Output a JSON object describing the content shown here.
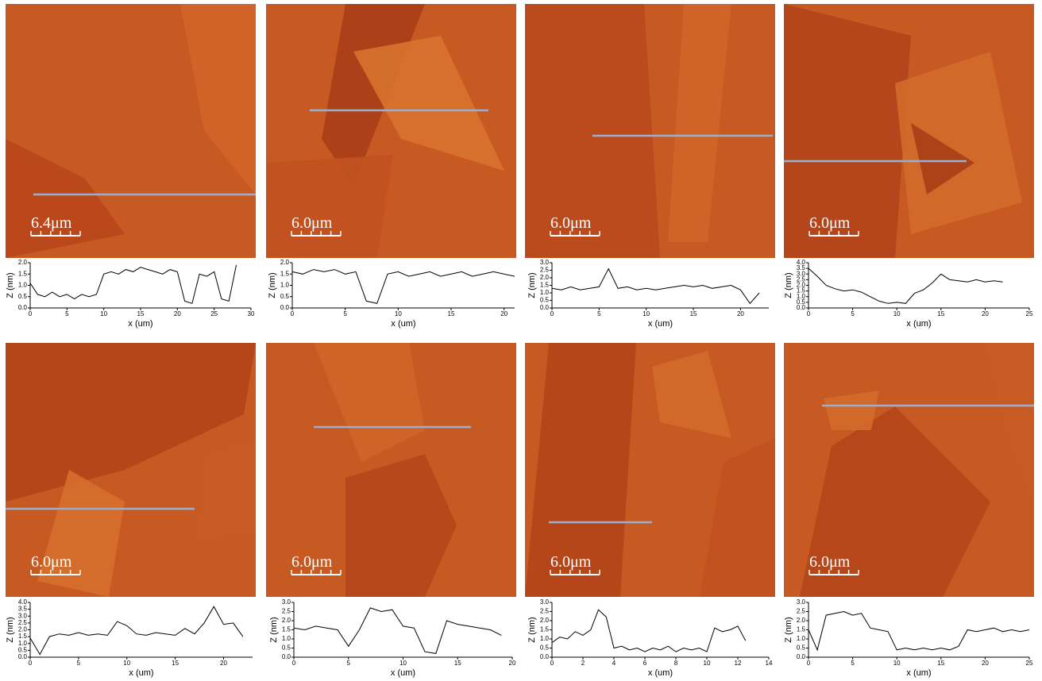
{
  "chart_data": [
    {
      "type": "line",
      "scale_bar": "6.4μm",
      "xlabel": "x (um)",
      "ylabel": "Z (nm)",
      "x": [
        0,
        1,
        2,
        3,
        4,
        5,
        6,
        7,
        8,
        9,
        10,
        11,
        12,
        13,
        14,
        15,
        16,
        17,
        18,
        19,
        20,
        21,
        22,
        23,
        24,
        25,
        26,
        27,
        28
      ],
      "values": [
        1.1,
        0.6,
        0.5,
        0.7,
        0.5,
        0.6,
        0.4,
        0.6,
        0.5,
        0.6,
        1.5,
        1.6,
        1.5,
        1.7,
        1.6,
        1.8,
        1.7,
        1.6,
        1.5,
        1.7,
        1.6,
        0.3,
        0.2,
        1.5,
        1.4,
        1.6,
        0.4,
        0.3,
        1.9
      ],
      "xlim": [
        0,
        30
      ],
      "xticks": [
        0,
        5,
        10,
        15,
        20,
        25,
        30
      ],
      "ylim": [
        0,
        2
      ],
      "yticks": [
        {
          "value": 0,
          "label": "0.0"
        },
        0.5,
        {
          "value": 1,
          "label": "1.0"
        },
        1.5,
        {
          "value": 2,
          "label": "2.0"
        }
      ],
      "color": "#000000"
    },
    {
      "type": "line",
      "scale_bar": "6.0μm",
      "xlabel": "x (um)",
      "ylabel": "Z (nm)",
      "x": [
        0,
        1,
        2,
        3,
        4,
        5,
        6,
        7,
        8,
        9,
        10,
        11,
        12,
        13,
        14,
        15,
        16,
        17,
        18,
        19,
        20,
        21
      ],
      "values": [
        1.6,
        1.5,
        1.7,
        1.6,
        1.7,
        1.5,
        1.6,
        0.3,
        0.2,
        1.5,
        1.6,
        1.4,
        1.5,
        1.6,
        1.4,
        1.5,
        1.6,
        1.4,
        1.5,
        1.6,
        1.5,
        1.4
      ],
      "xlim": [
        0,
        21
      ],
      "xticks": [
        0,
        5,
        10,
        15,
        20
      ],
      "ylim": [
        0,
        2
      ],
      "yticks": [
        {
          "value": 0,
          "label": "0.0"
        },
        0.5,
        {
          "value": 1,
          "label": "1.0"
        },
        1.5,
        {
          "value": 2,
          "label": "2.0"
        }
      ],
      "color": "#000000"
    },
    {
      "type": "line",
      "scale_bar": "6.0μm",
      "xlabel": "x (um)",
      "ylabel": "Z (nm)",
      "x": [
        0,
        1,
        2,
        3,
        4,
        5,
        6,
        7,
        8,
        9,
        10,
        11,
        12,
        13,
        14,
        15,
        16,
        17,
        18,
        19,
        20,
        21,
        22
      ],
      "values": [
        1.3,
        1.2,
        1.4,
        1.2,
        1.3,
        1.4,
        2.6,
        1.3,
        1.4,
        1.2,
        1.3,
        1.2,
        1.3,
        1.4,
        1.5,
        1.4,
        1.5,
        1.3,
        1.4,
        1.5,
        1.2,
        0.3,
        1.0
      ],
      "xlim": [
        0,
        23
      ],
      "xticks": [
        0,
        5,
        10,
        15,
        20
      ],
      "ylim": [
        0,
        3
      ],
      "yticks": [
        {
          "value": 0,
          "label": "0.0"
        },
        0.5,
        {
          "value": 1,
          "label": "1.0"
        },
        1.5,
        {
          "value": 2,
          "label": "2.0"
        },
        2.5,
        {
          "value": 3,
          "label": "3.0"
        }
      ],
      "color": "#000000"
    },
    {
      "type": "line",
      "scale_bar": "6.0μm",
      "xlabel": "x (um)",
      "ylabel": "Z (nm)",
      "x": [
        0,
        1,
        2,
        3,
        4,
        5,
        6,
        7,
        8,
        9,
        10,
        11,
        12,
        13,
        14,
        15,
        16,
        17,
        18,
        19,
        20,
        21,
        22
      ],
      "values": [
        3.5,
        2.8,
        2.0,
        1.7,
        1.5,
        1.6,
        1.4,
        1.0,
        0.6,
        0.4,
        0.5,
        0.4,
        1.3,
        1.6,
        2.2,
        3.0,
        2.5,
        2.4,
        2.3,
        2.5,
        2.3,
        2.4,
        2.3
      ],
      "xlim": [
        0,
        25
      ],
      "xticks": [
        0,
        5,
        10,
        15,
        20,
        25
      ],
      "ylim": [
        0,
        4
      ],
      "yticks": [
        {
          "value": 0,
          "label": "0.0"
        },
        0.5,
        {
          "value": 1,
          "label": "1.0"
        },
        1.5,
        {
          "value": 2,
          "label": "2.0"
        },
        2.5,
        {
          "value": 3,
          "label": "3.0"
        },
        3.5,
        {
          "value": 4,
          "label": "4.0"
        }
      ],
      "color": "#000000"
    },
    {
      "type": "line",
      "scale_bar": "6.0μm",
      "xlabel": "x (um)",
      "ylabel": "Z (nm)",
      "x": [
        0,
        1,
        2,
        3,
        4,
        5,
        6,
        7,
        8,
        9,
        10,
        11,
        12,
        13,
        14,
        15,
        16,
        17,
        18,
        19,
        20,
        21,
        22
      ],
      "values": [
        1.4,
        0.2,
        1.5,
        1.7,
        1.6,
        1.8,
        1.6,
        1.7,
        1.6,
        2.6,
        2.3,
        1.7,
        1.6,
        1.8,
        1.7,
        1.6,
        2.1,
        1.7,
        2.5,
        3.7,
        2.4,
        2.5,
        1.5
      ],
      "xlim": [
        0,
        23
      ],
      "xticks": [
        0,
        5,
        10,
        15,
        20
      ],
      "ylim": [
        0,
        4
      ],
      "yticks": [
        {
          "value": 0,
          "label": "0.0"
        },
        0.5,
        {
          "value": 1,
          "label": "1.0"
        },
        1.5,
        {
          "value": 2,
          "label": "2.0"
        },
        2.5,
        {
          "value": 3,
          "label": "3.0"
        },
        3.5,
        {
          "value": 4,
          "label": "4.0"
        }
      ],
      "color": "#000000"
    },
    {
      "type": "line",
      "scale_bar": "6.0μm",
      "xlabel": "x (um)",
      "ylabel": "Z (nm)",
      "x": [
        0,
        1,
        2,
        3,
        4,
        5,
        6,
        7,
        8,
        9,
        10,
        11,
        12,
        13,
        14,
        15,
        16,
        17,
        18,
        19
      ],
      "values": [
        1.6,
        1.5,
        1.7,
        1.6,
        1.5,
        0.6,
        1.5,
        2.7,
        2.5,
        2.6,
        1.7,
        1.6,
        0.3,
        0.2,
        2.0,
        1.8,
        1.7,
        1.6,
        1.5,
        1.2
      ],
      "xlim": [
        0,
        20
      ],
      "xticks": [
        0,
        5,
        10,
        15,
        20
      ],
      "ylim": [
        0,
        3
      ],
      "yticks": [
        {
          "value": 0,
          "label": "0.0"
        },
        0.5,
        {
          "value": 1,
          "label": "1.0"
        },
        1.5,
        {
          "value": 2,
          "label": "2.0"
        },
        2.5,
        {
          "value": 3,
          "label": "3.0"
        }
      ],
      "color": "#000000"
    },
    {
      "type": "line",
      "scale_bar": "6.0μm",
      "xlabel": "x (um)",
      "ylabel": "Z (nm)",
      "x": [
        0,
        0.5,
        1,
        1.5,
        2,
        2.5,
        3,
        3.5,
        4,
        4.5,
        5,
        5.5,
        6,
        6.5,
        7,
        7.5,
        8,
        8.5,
        9,
        9.5,
        10,
        10.5,
        11,
        11.5,
        12,
        12.5
      ],
      "values": [
        0.8,
        1.1,
        1.0,
        1.4,
        1.2,
        1.5,
        2.6,
        2.2,
        0.5,
        0.6,
        0.4,
        0.5,
        0.3,
        0.5,
        0.4,
        0.6,
        0.3,
        0.5,
        0.4,
        0.5,
        0.3,
        1.6,
        1.4,
        1.5,
        1.7,
        0.9
      ],
      "xlim": [
        0,
        14
      ],
      "xticks": [
        0,
        2,
        4,
        6,
        8,
        10,
        12,
        14
      ],
      "ylim": [
        0,
        3
      ],
      "yticks": [
        {
          "value": 0,
          "label": "0.0"
        },
        0.5,
        {
          "value": 1,
          "label": "1.0"
        },
        1.5,
        {
          "value": 2,
          "label": "2.0"
        },
        2.5,
        {
          "value": 3,
          "label": "3.0"
        }
      ],
      "color": "#000000"
    },
    {
      "type": "line",
      "scale_bar": "6.0μm",
      "xlabel": "x (um)",
      "ylabel": "Z (nm)",
      "x": [
        0,
        1,
        2,
        3,
        4,
        5,
        6,
        7,
        8,
        9,
        10,
        11,
        12,
        13,
        14,
        15,
        16,
        17,
        18,
        19,
        20,
        21,
        22,
        23,
        24,
        25
      ],
      "values": [
        1.5,
        0.4,
        2.3,
        2.4,
        2.5,
        2.3,
        2.4,
        1.6,
        1.5,
        1.4,
        0.4,
        0.5,
        0.4,
        0.5,
        0.4,
        0.5,
        0.4,
        0.6,
        1.5,
        1.4,
        1.5,
        1.6,
        1.4,
        1.5,
        1.4,
        1.5
      ],
      "xlim": [
        0,
        25
      ],
      "xticks": [
        0,
        5,
        10,
        15,
        20,
        25
      ],
      "ylim": [
        0,
        3
      ],
      "yticks": [
        {
          "value": 0,
          "label": "0.0"
        },
        0.5,
        {
          "value": 1,
          "label": "1.0"
        },
        1.5,
        {
          "value": 2,
          "label": "2.0"
        },
        2.5,
        {
          "value": 3,
          "label": "3.0"
        }
      ],
      "color": "#000000"
    }
  ]
}
